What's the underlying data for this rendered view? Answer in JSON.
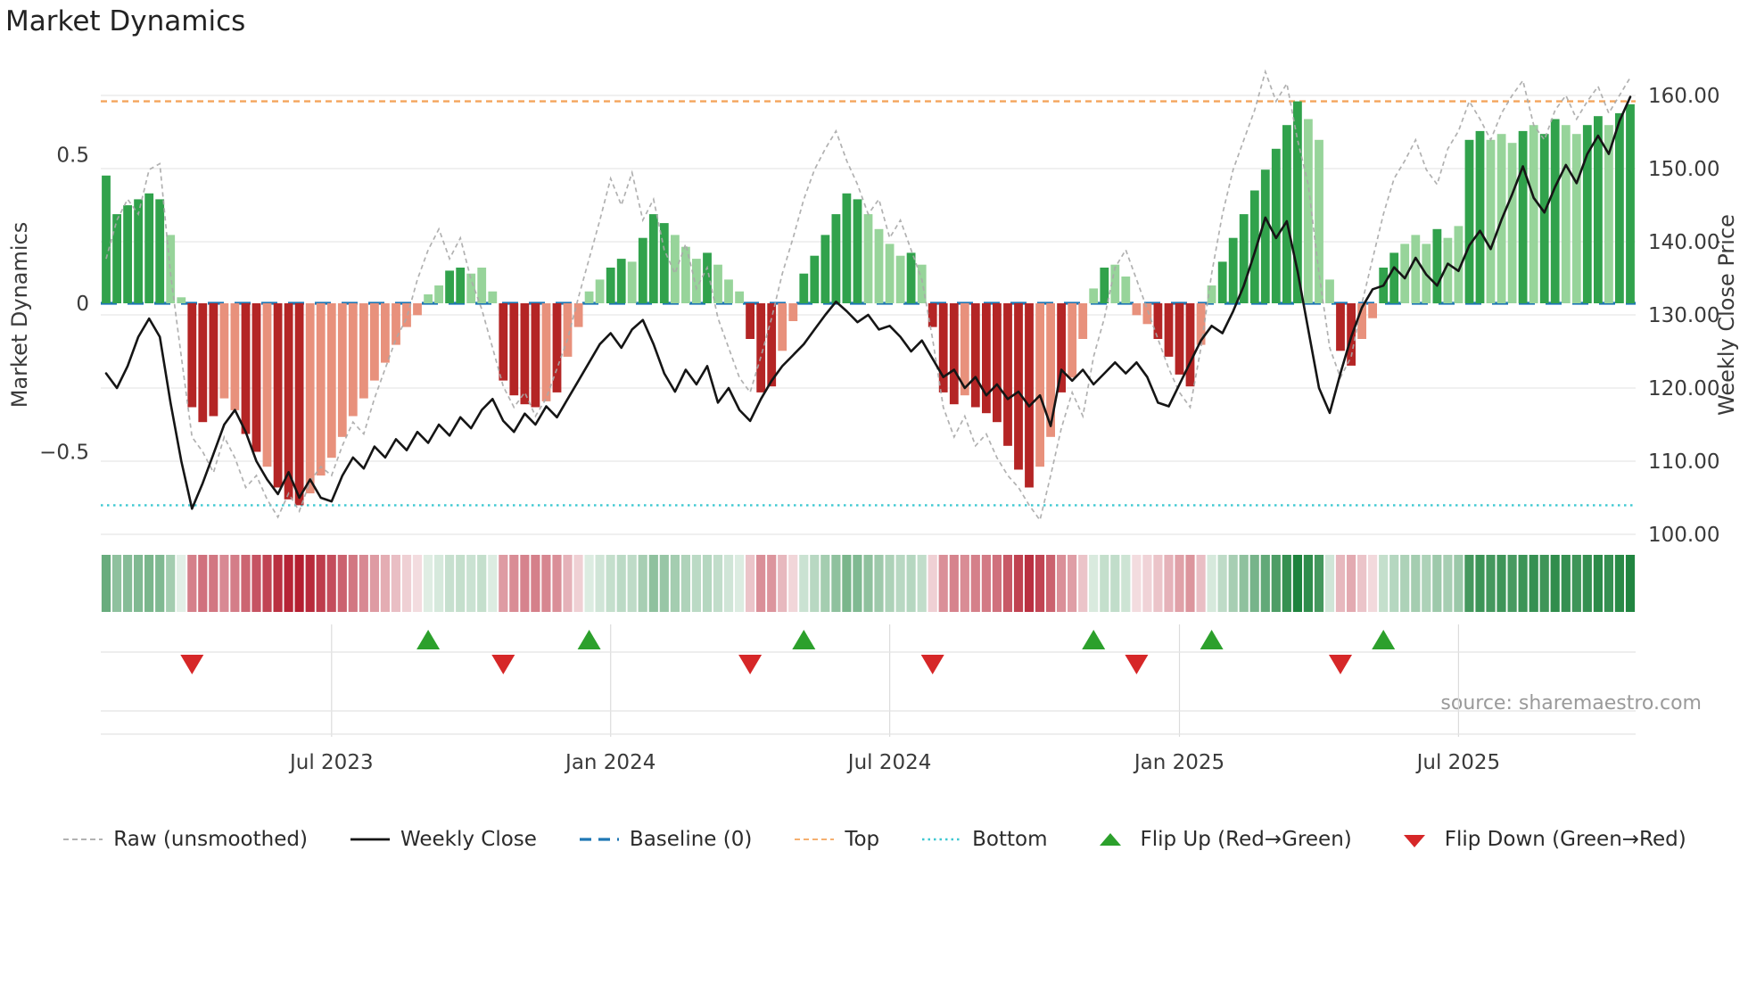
{
  "title": "Market Dynamics",
  "source": "source: sharemaestro.com",
  "axes": {
    "left_label": "Market Dynamics",
    "right_label": "Weekly Close Price",
    "left_ticks": [
      "0.5",
      "0",
      "−0.5"
    ],
    "left_tick_values": [
      0.5,
      0,
      -0.5
    ],
    "right_ticks": [
      "160.00",
      "150.00",
      "140.00",
      "130.00",
      "120.00",
      "110.00",
      "100.00"
    ],
    "right_tick_values": [
      160,
      150,
      140,
      130,
      120,
      110,
      100
    ],
    "x_ticks": [
      {
        "label": "Jul 2023",
        "week": 21
      },
      {
        "label": "Jan 2024",
        "week": 47
      },
      {
        "label": "Jul 2024",
        "week": 73
      },
      {
        "label": "Jan 2025",
        "week": 100
      },
      {
        "label": "Jul 2025",
        "week": 126
      }
    ]
  },
  "colors": {
    "dark_green": "#31a24c",
    "light_green": "#97d49a",
    "dark_red": "#b42525",
    "light_red": "#e8917c",
    "raw_line": "#a8a8a8",
    "close_line": "#151515",
    "baseline": "#1f77b4",
    "top_line": "#f4a55c",
    "bottom_line": "#3ec8d1",
    "flip_up": "#2ca02c",
    "flip_down": "#d62728",
    "heatmap_pos": "#188038",
    "heatmap_neg": "#b2182b",
    "grid": "#e7e7e7",
    "marker_grid": "#dcdcdc",
    "text": "#3a3a3a",
    "muted_text": "#9a9a9a"
  },
  "legend": [
    {
      "id": "raw",
      "label": "Raw (unsmoothed)",
      "swatch": "dashed-line",
      "color": "#a8a8a8"
    },
    {
      "id": "weekly-close",
      "label": "Weekly Close",
      "swatch": "solid-line",
      "color": "#151515"
    },
    {
      "id": "baseline",
      "label": "Baseline (0)",
      "swatch": "long-dash-line",
      "color": "#1f77b4"
    },
    {
      "id": "top",
      "label": "Top",
      "swatch": "dashed-line",
      "color": "#f4a55c"
    },
    {
      "id": "bottom",
      "label": "Bottom",
      "swatch": "dotted-line",
      "color": "#3ec8d1"
    },
    {
      "id": "flip-up",
      "label": "Flip Up (Red→Green)",
      "swatch": "triangle-up",
      "color": "#2ca02c"
    },
    {
      "id": "flip-down",
      "label": "Flip Down (Green→Red)",
      "swatch": "triangle-down",
      "color": "#d62728"
    }
  ],
  "chart_data": {
    "type": "combo",
    "description": "Weekly oscillator bars (left axis) + raw unsmoothed oscillator (dashed) + weekly close price (right axis), with heatmap strip and flip markers",
    "weeks": 143,
    "left_ylim": [
      -0.8,
      0.8
    ],
    "right_ylim": [
      98.5,
      163
    ],
    "baseline": 0,
    "top": 0.68,
    "bottom": -0.68,
    "oscillator": {
      "values": [
        0.43,
        0.3,
        0.33,
        0.35,
        0.37,
        0.35,
        0.23,
        0.02,
        -0.35,
        -0.4,
        -0.38,
        -0.32,
        -0.36,
        -0.44,
        -0.5,
        -0.55,
        -0.62,
        -0.66,
        -0.68,
        -0.64,
        -0.58,
        -0.52,
        -0.45,
        -0.38,
        -0.32,
        -0.26,
        -0.2,
        -0.14,
        -0.08,
        -0.04,
        0.03,
        0.06,
        0.11,
        0.12,
        0.1,
        0.12,
        0.04,
        -0.26,
        -0.31,
        -0.34,
        -0.35,
        -0.33,
        -0.3,
        -0.18,
        -0.08,
        0.04,
        0.08,
        0.12,
        0.15,
        0.14,
        0.22,
        0.3,
        0.27,
        0.23,
        0.19,
        0.15,
        0.17,
        0.13,
        0.08,
        0.04,
        -0.12,
        -0.3,
        -0.28,
        -0.16,
        -0.06,
        0.1,
        0.16,
        0.23,
        0.3,
        0.37,
        0.35,
        0.3,
        0.25,
        0.2,
        0.16,
        0.17,
        0.13,
        -0.08,
        -0.3,
        -0.34,
        -0.31,
        -0.35,
        -0.37,
        -0.4,
        -0.48,
        -0.56,
        -0.62,
        -0.55,
        -0.45,
        -0.3,
        -0.25,
        -0.12,
        0.05,
        0.12,
        0.13,
        0.09,
        -0.04,
        -0.07,
        -0.12,
        -0.18,
        -0.24,
        -0.28,
        -0.14,
        0.06,
        0.14,
        0.22,
        0.3,
        0.38,
        0.45,
        0.52,
        0.6,
        0.68,
        0.62,
        0.55,
        0.08,
        -0.16,
        -0.21,
        -0.12,
        -0.05,
        0.12,
        0.17,
        0.2,
        0.23,
        0.2,
        0.25,
        0.22,
        0.26,
        0.55,
        0.58,
        0.55,
        0.57,
        0.54,
        0.58,
        0.6,
        0.57,
        0.62,
        0.6,
        0.57,
        0.6,
        0.63,
        0.6,
        0.64,
        0.67
      ],
      "colors": [
        "dg",
        "dg",
        "dg",
        "dg",
        "dg",
        "dg",
        "lg",
        "lg",
        "dr",
        "dr",
        "dr",
        "lr",
        "lr",
        "dr",
        "dr",
        "lr",
        "dr",
        "dr",
        "dr",
        "lr",
        "lr",
        "lr",
        "lr",
        "lr",
        "lr",
        "lr",
        "lr",
        "lr",
        "lr",
        "lr",
        "lg",
        "lg",
        "dg",
        "dg",
        "lg",
        "lg",
        "lg",
        "dr",
        "dr",
        "dr",
        "dr",
        "lr",
        "dr",
        "lr",
        "lr",
        "lg",
        "lg",
        "dg",
        "dg",
        "lg",
        "dg",
        "dg",
        "dg",
        "lg",
        "lg",
        "lg",
        "dg",
        "lg",
        "lg",
        "lg",
        "dr",
        "dr",
        "dr",
        "lr",
        "lr",
        "dg",
        "dg",
        "dg",
        "dg",
        "dg",
        "dg",
        "lg",
        "lg",
        "lg",
        "lg",
        "dg",
        "lg",
        "dr",
        "dr",
        "dr",
        "lr",
        "dr",
        "dr",
        "dr",
        "dr",
        "dr",
        "dr",
        "lr",
        "lr",
        "dr",
        "lr",
        "lr",
        "lg",
        "dg",
        "lg",
        "lg",
        "lr",
        "lr",
        "dr",
        "dr",
        "dr",
        "dr",
        "lr",
        "lg",
        "dg",
        "dg",
        "dg",
        "dg",
        "dg",
        "dg",
        "dg",
        "dg",
        "lg",
        "lg",
        "lg",
        "dr",
        "dr",
        "lr",
        "lr",
        "dg",
        "dg",
        "lg",
        "lg",
        "lg",
        "dg",
        "lg",
        "lg",
        "dg",
        "dg",
        "lg",
        "lg",
        "lg",
        "dg",
        "lg",
        "dg",
        "dg",
        "lg",
        "lg",
        "dg",
        "dg",
        "lg",
        "dg",
        "dg"
      ]
    },
    "raw": [
      0.15,
      0.28,
      0.35,
      0.3,
      0.45,
      0.47,
      0.1,
      -0.18,
      -0.45,
      -0.5,
      -0.57,
      -0.45,
      -0.52,
      -0.62,
      -0.58,
      -0.66,
      -0.72,
      -0.64,
      -0.7,
      -0.6,
      -0.55,
      -0.58,
      -0.48,
      -0.4,
      -0.44,
      -0.32,
      -0.22,
      -0.12,
      -0.05,
      0.08,
      0.18,
      0.25,
      0.15,
      0.22,
      0.08,
      -0.02,
      -0.15,
      -0.28,
      -0.35,
      -0.3,
      -0.38,
      -0.32,
      -0.22,
      -0.12,
      0.02,
      0.15,
      0.28,
      0.42,
      0.33,
      0.44,
      0.28,
      0.35,
      0.18,
      0.1,
      0.2,
      0.05,
      0.12,
      -0.05,
      -0.15,
      -0.25,
      -0.3,
      -0.18,
      -0.05,
      0.1,
      0.22,
      0.35,
      0.45,
      0.52,
      0.58,
      0.48,
      0.4,
      0.3,
      0.35,
      0.22,
      0.28,
      0.18,
      0.08,
      -0.12,
      -0.35,
      -0.45,
      -0.38,
      -0.48,
      -0.44,
      -0.52,
      -0.58,
      -0.62,
      -0.68,
      -0.73,
      -0.58,
      -0.42,
      -0.3,
      -0.38,
      -0.18,
      -0.05,
      0.12,
      0.18,
      0.08,
      -0.02,
      -0.12,
      -0.22,
      -0.3,
      -0.35,
      -0.15,
      0.1,
      0.3,
      0.45,
      0.55,
      0.65,
      0.78,
      0.68,
      0.74,
      0.55,
      0.4,
      0.1,
      -0.15,
      -0.25,
      -0.18,
      0.0,
      0.15,
      0.3,
      0.42,
      0.48,
      0.55,
      0.45,
      0.4,
      0.52,
      0.58,
      0.68,
      0.62,
      0.55,
      0.64,
      0.7,
      0.75,
      0.6,
      0.55,
      0.65,
      0.7,
      0.62,
      0.68,
      0.73,
      0.64,
      0.7,
      0.76
    ],
    "weekly_close": [
      122,
      120,
      123,
      127,
      129.5,
      127,
      118,
      110,
      103.5,
      107,
      111,
      115,
      117,
      114,
      110,
      107.5,
      105.5,
      108.5,
      105,
      107.5,
      105,
      104.5,
      108,
      110.5,
      109,
      112,
      110.5,
      113,
      111.5,
      114,
      112.5,
      115,
      113.5,
      116,
      114.5,
      117,
      118.5,
      115.5,
      114,
      116.5,
      115,
      117.5,
      116,
      118.5,
      121,
      123.5,
      126,
      127.5,
      125.5,
      128,
      129.3,
      126,
      122,
      119.5,
      122.5,
      120.5,
      123,
      118,
      120,
      117,
      115.5,
      118.5,
      121,
      123,
      124.5,
      126,
      128,
      130,
      131.8,
      130.5,
      129,
      130,
      128,
      128.5,
      127,
      125,
      126.5,
      124,
      121.5,
      122.5,
      120,
      121.5,
      119,
      120.5,
      118.5,
      119.5,
      117.5,
      119,
      114.8,
      122.5,
      121,
      122.5,
      120.5,
      122,
      123.5,
      122,
      123.5,
      121.5,
      118,
      117.5,
      120.5,
      123.5,
      126.5,
      128.5,
      127.5,
      130.5,
      134,
      138.5,
      143.3,
      140.5,
      142.8,
      136,
      128,
      120,
      116.6,
      122,
      127,
      131,
      133.5,
      134,
      136.5,
      135,
      137.8,
      135.5,
      134,
      137,
      136,
      139.5,
      141.5,
      139,
      143,
      146.5,
      150.3,
      146,
      144,
      147.5,
      150.5,
      148,
      152,
      154.5,
      152,
      156.5,
      159.8
    ],
    "flip_up_weeks": [
      30,
      45,
      65,
      92,
      103,
      119
    ],
    "flip_down_weeks": [
      8,
      37,
      60,
      77,
      96,
      115
    ]
  }
}
